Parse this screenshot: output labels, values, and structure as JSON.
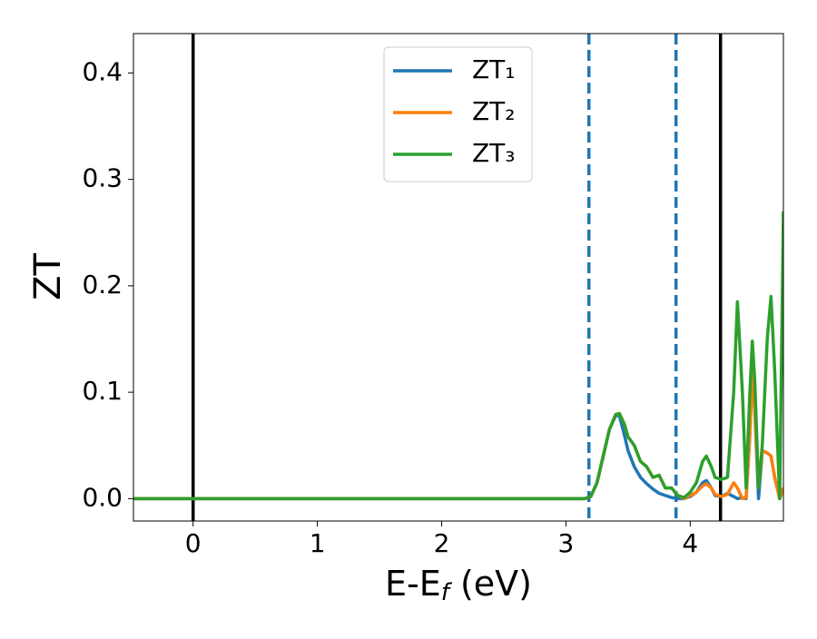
{
  "chart_data": {
    "type": "line",
    "xlabel": "E-E",
    "xlabel_sub": "f",
    "xlabel_unit": " (eV)",
    "ylabel": "ZT",
    "x": [
      -0.48,
      0,
      1,
      2,
      3,
      3.1,
      3.15,
      3.2,
      3.25,
      3.3,
      3.35,
      3.4,
      3.43,
      3.47,
      3.5,
      3.55,
      3.6,
      3.65,
      3.7,
      3.75,
      3.8,
      3.85,
      3.9,
      3.95,
      4.0,
      4.05,
      4.1,
      4.13,
      4.17,
      4.2,
      4.25,
      4.3,
      4.35,
      4.38,
      4.42,
      4.45,
      4.48,
      4.5,
      4.52,
      4.55,
      4.58,
      4.62,
      4.65,
      4.68,
      4.72,
      4.75
    ],
    "series": [
      {
        "name": "ZT₁",
        "color": "#1f77b4",
        "values": [
          0,
          0,
          0,
          0,
          0,
          0,
          0,
          0.002,
          0.015,
          0.04,
          0.065,
          0.078,
          0.078,
          0.06,
          0.045,
          0.03,
          0.02,
          0.014,
          0.009,
          0.005,
          0.003,
          0.001,
          0,
          0,
          0.002,
          0.006,
          0.015,
          0.017,
          0.01,
          0.003,
          0.002,
          0.005,
          0.002,
          0,
          0.001,
          0,
          0.06,
          0.125,
          0.08,
          0,
          0.045,
          0.043,
          0.04,
          0.02,
          0,
          0.01
        ]
      },
      {
        "name": "ZT₂",
        "color": "#ff7f0e",
        "values": [
          0,
          0,
          0,
          0,
          0,
          0,
          0,
          0.002,
          0.015,
          0.04,
          0.065,
          0.079,
          0.08,
          0.07,
          0.058,
          0.05,
          0.035,
          0.03,
          0.02,
          0.022,
          0.01,
          0.01,
          0.003,
          0,
          0.003,
          0.006,
          0.012,
          0.014,
          0.01,
          0.004,
          0.002,
          0.004,
          0.015,
          0.01,
          0,
          0.001,
          0.06,
          0.125,
          0.08,
          0.01,
          0.045,
          0.043,
          0.04,
          0.02,
          0,
          0.01
        ]
      },
      {
        "name": "ZT₃",
        "color": "#2ca02c",
        "values": [
          0,
          0,
          0,
          0,
          0,
          0,
          0,
          0.002,
          0.015,
          0.04,
          0.065,
          0.079,
          0.08,
          0.07,
          0.058,
          0.05,
          0.035,
          0.03,
          0.02,
          0.022,
          0.01,
          0.01,
          0.003,
          0.001,
          0.006,
          0.015,
          0.035,
          0.04,
          0.03,
          0.02,
          0.018,
          0.02,
          0.1,
          0.185,
          0.1,
          0.01,
          0.1,
          0.148,
          0.11,
          0.01,
          0.05,
          0.15,
          0.19,
          0.12,
          0,
          0.27
        ]
      }
    ],
    "vlines": [
      {
        "x": 0,
        "color": "#000000",
        "dashed": false
      },
      {
        "x": 3.185,
        "color": "#1f77b4",
        "dashed": true
      },
      {
        "x": 3.886,
        "color": "#1f77b4",
        "dashed": true
      },
      {
        "x": 4.244,
        "color": "#000000",
        "dashed": false
      }
    ],
    "xlim": [
      -0.48,
      4.75
    ],
    "ylim": [
      -0.021,
      0.437
    ],
    "xticks": [
      0,
      1,
      2,
      3,
      4
    ],
    "yticks": [
      {
        "value": 0,
        "label": "0.0"
      },
      {
        "value": 0.1,
        "label": "0.1"
      },
      {
        "value": 0.2,
        "label": "0.2"
      },
      {
        "value": 0.3,
        "label": "0.3"
      },
      {
        "value": 0.4,
        "label": "0.4"
      }
    ],
    "legend": "upper center"
  }
}
